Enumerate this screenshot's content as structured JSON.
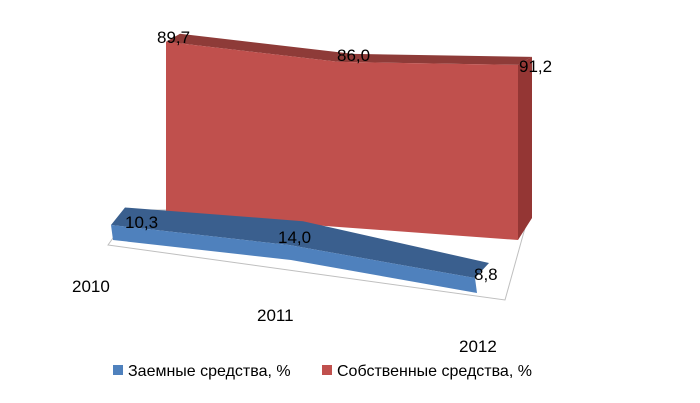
{
  "chart_data": {
    "type": "area",
    "style": "3d-ribbon",
    "categories": [
      "2010",
      "2011",
      "2012"
    ],
    "series": [
      {
        "name": "Заемные средства, %",
        "values": [
          10.3,
          14.0,
          8.8
        ],
        "labels": [
          "10,3",
          "14,0",
          "8,8"
        ],
        "color": "#4F81BD"
      },
      {
        "name": "Собственные средства, %",
        "values": [
          89.7,
          86.0,
          91.2
        ],
        "labels": [
          "89,7",
          "86,0",
          "91,2"
        ],
        "color": "#C0504D"
      }
    ],
    "legend": "bottom",
    "grid": false
  }
}
